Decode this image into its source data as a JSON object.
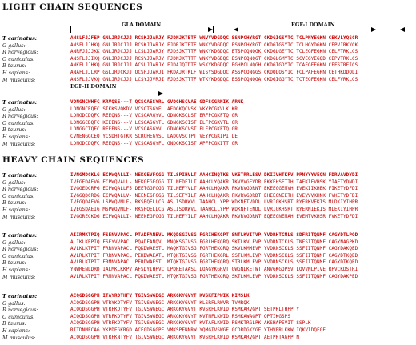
{
  "light_title": "LIGHT CHAIN SEQUENCES",
  "heavy_title": "HEAVY CHAIN SEQUENCES",
  "domains": {
    "gla": "GLA DOMAIN",
    "egf1": "EGF-I DOMAIN",
    "egf2": "EGF-II DOMAIN"
  },
  "colors": {
    "identical": "#cc0000",
    "similar": "#0099cc",
    "label": "#111111"
  },
  "light": [
    {
      "rows": [
        {
          "species": "T carinatus:",
          "seq": "ANSLFJJFEP GNLJRJCJJJ RCSKJJARJY FJDNJKTETF WNVYVDGDQC SSNPCHYRGT CKDGIGSYTC TCLPNYEGKN CEKVLYQSCR"
        },
        {
          "species": "G gallus:",
          "seq": "ANSFLJJHKQ GNLJRJCJJJ RCSKJJARJY FJDRJKTETF WNKYVDGDQC ESNPCHYRGT CKDGIGSYTC TCLHGYDGKN CEPVIRKYCK"
        },
        {
          "species": "R norvegicus:",
          "seq": "ANRFJJJJKK GNLJRJCJJJ LCSLJJARJY FJDSJKTTTF WNKYKDGDQC ETSPCQNQGK CKDGLGEYTC TCLEGFEGKN CELFTRKLCS"
        },
        {
          "species": "O cuniculus:",
          "seq": "ANSFLJJIKQ GNLJRJCJJJ RCSYJJARJY FJDNJKTTTF WNKYVDGDQC ESNPCQNQGT CKDGLGMYTC SCVEGYEGQD CEPVTRKLCS"
        },
        {
          "species": "B taurus:",
          "seq": "ANKFLJJHKQ GNLJRJCJJJ ACSLJJARJY FJDAJQTDTF WSKYKDGDQC EGHPCLNQGH CKDGIGDYTC TCAEGFEGKN CEFSTREICS"
        },
        {
          "species": "H sapiens:",
          "seq": "ANAFLJJLRP GSLJRJCKJJ QCSFJJARJI FKDAJRTKLF WISYSDGDQC ASSPCQNGGS CKDQLQSYIC FCLPAFEGRN CETHKDDQLI"
        },
        {
          "species": "M musculus:",
          "seq": "ANSFLJJVKQ GNLJRJCJJJ LCSYJJVRJI FJDSJKTTTF WTKYKDGDQC ESSPCQNQGA CKDGIGGYTC TCTEGFEGKN CELFVRKLCS"
        }
      ]
    },
    {
      "rows": [
        {
          "species": "T carinatus:",
          "seq": "VDNGNCWHFC KRVQSE---T QCSCAESYRL GVDGHSCVAE GDFSCGRNIK ARNK"
        },
        {
          "species": "G gallus:",
          "seq": "LDNGNCEQFC SIKKSVQKDV VCSCTSGYEL AEDGKQCVSK VKYPCGKVLK KR"
        },
        {
          "species": "R norvegicus:",
          "seq": "LDNGDCDQFC REEQNS---V VCSCARGYVL GDNGKSCLST ERFPCGKFTQ GR"
        },
        {
          "species": "O cuniculus:",
          "seq": "LDNGGCDQFC KEEENS---V LCSCASGYTL GDNGKSCIST ELFPCGKVTL GR"
        },
        {
          "species": "B taurus:",
          "seq": "LDNGGCTQFC REEENS---V VCSCASGYVL GDNGKSCVST ELFPCGKFTQ GR"
        },
        {
          "species": "H sapiens:",
          "seq": "CVNENGGCEQ YCSDHTGTKR SCRCHEGYSL LADGVSCTPT VEYPCGKIPI LE"
        },
        {
          "species": "M musculus:",
          "seq": "LDNGDCDQFC REEQNS---V VCSCASGYFL GNDGKSCIST APFPCGKITT GR"
        }
      ]
    }
  ],
  "heavy": [
    {
      "rows": [
        {
          "species": "T carinatus:",
          "seq": "IVNGMDCKLG ECPWQALLI- NEKGEVFCGG TILSPIHVLT AAHCINQTKS VKETRRLESV DKIIVHTKFV PPNYYYVEQN FDRVAVDYDI"
        },
        {
          "species": "G gallus:",
          "seq": "IVEGEDAEVG ECPWQVALL- NEKGEGFCGG TILNEDFILT AAHCLYQAKR IKVVVGEVDR EKKEHSETTH TAEKIFVHSK YIAETYDNDI"
        },
        {
          "species": "R norvegicus:",
          "seq": "IVGGEDCRPG ECPWQALLF5 DEETGGFCGG TILNEFYVLT AAHCLHQAKR FKVRVGDRNT EKEEGGEMVH EVEKIIKHEK FIKETYDFDI"
        },
        {
          "species": "O cuniculus:",
          "seq": "IVGGQDCRDG ECPWQALLV- NEENEGFCGG TILSEFYILT AAHCLHQAKR FKVRVGDRDT EHEEGNEETH EVEVVVKHNK FVKETYDFDI"
        },
        {
          "species": "B taurus:",
          "seq": "IVEGQDAEVG LSPWQVMLF- RKSPQELLCG ASLISDRWVL TAAHCLLYPP WDKNFTVDDL LVRIGKHSRT RYERKVEKIS MLDKIYIHPR"
        },
        {
          "species": "H sapiens:",
          "seq": "IVEGSDAEIG MSPWQVMLF- RKSPQELLCG ASLISDRWVL TAAHCLLYPP WDKNFTENDL LVRIGKHSRT RYERNIEKIS MLEKIYIHPR"
        },
        {
          "species": "M musculus:",
          "seq": "IVGGRECKDG ECPWQALLI- NEENEGFCGG TILNEFYILT AAHCLHQAKR FKVRVGDRNT EQEEGNEMAH EVEMTVKHSR FVKETYDFDI"
        }
      ]
    },
    {
      "rows": [
        {
          "species": "T carinatus:",
          "seq": "AIIRMKTPIQ FSENVVPACL PTADFANEVL MKQDSGIVSG FGRIHEKGPT SNTLKVITVP YVDRHTCMLS SDFRITQNMF CAGYDTLPQD"
        },
        {
          "species": "G gallus:",
          "seq": "ALIKLKEPIQ FSEYVVPACL PQADFANQVL MNQKSGIVSG FGRLHEKGRQ SKTLKVLEVP YVDRNTCKLS TNFSITQNMF CAGYNAGPKD"
        },
        {
          "species": "R norvegicus:",
          "seq": "AVLKLKTPIT FRRNVAPACL PQKDWAESTL MAQKTGIVSG FGRTHEKGRQ SKVLKMMEVP YVDRNSCKLS SSFIITQNMF CAGYDAKQED"
        },
        {
          "species": "O cuniculus:",
          "seq": "AVLRLKTPIT FRRNVAPACL PEKDWAEATL MTQKTGIVSG FGRTHEKGRL SSTLKMLEVP YVDRNSCKLS SSFIITQNMF CAGYDTKQED"
        },
        {
          "species": "B taurus:",
          "seq": "AVLRLKTPIT FRMNVAPACL PERDWAESTL MTQKTGIVSG FGRTHEKGRQ STRLKMLEVP YVDRNSCKLS SSFIITQNMF CAGYDTKQED"
        },
        {
          "species": "H sapiens:",
          "seq": "YNWRENLDRD IALMKLKKPV AFSDYIHPVC LPDRETAASL LQAGYKGRVT GWGNLKETWT ANVGKGQPSV LQVVNLPIVE RPVCKDSTRI"
        },
        {
          "species": "M musculus:",
          "seq": "AVLRLKTPIT FRMNVAPACL PQKDWAESTL MTQKTGIVSG FGRTHEKGRQ SKTLKMLEVP YVDRNSCKLS SSFIITQNMF CAGYDAKPED"
        }
      ]
    },
    {
      "rows": [
        {
          "species": "T carinatus:",
          "seq": "ACQGDSGGPH ITAYRDTHFV TGIVSWGEGC ARKGKYGVYT KVSKFIPWIK KIMSLK"
        },
        {
          "species": "G gallus:",
          "seq": "ACQGDSGGPH VTRYKDTYFV TGIVSWGEGC ARKGKYGVYT KLSRFLRWVR TVMRQK"
        },
        {
          "species": "R norvegicus:",
          "seq": "ACQGDSGGPH VTRFKDTYFV TGIVSWGEGC ARKGKYGVYT KVSRFLKWID KSMKARVGPT SETPRLTHPP Y"
        },
        {
          "species": "O cuniculus:",
          "seq": "ACQGDSGGPH VTRFKDTYFV TGIVSWGEGC ARKGKYGVYT KVTNFLKWID RSMKAWAGPT QPTIKGSPS"
        },
        {
          "species": "B taurus:",
          "seq": "ACQGDSGGPH VTRFKDTYFV TGIVSWGEGC ARKGKYGVYT KVTAFLKWID RSMKTRGLPK AKSHAPEVIT SSPLK"
        },
        {
          "species": "H sapiens:",
          "seq": "RITDNMFCAG YKPDEGKRGD ACEGDSGGPF VMKSPFNNRW YQMGIVSWGE GCDRDGKYGF YTHVFRLKKW IQKVIDQFGE"
        },
        {
          "species": "M musculus:",
          "seq": "ACQGDSGGPH VTRFKNTYFV TGIVSWGEGC ARKGKYGVYT KVSRFLKWID KSMKARVGPT AETPRTAGPP N"
        }
      ]
    }
  ]
}
